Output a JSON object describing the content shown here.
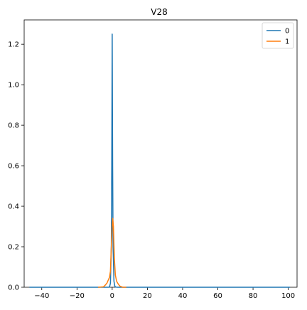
{
  "chart_data": {
    "type": "line",
    "title": "V28",
    "xlabel": "",
    "ylabel": "",
    "xlim": [
      -50,
      105
    ],
    "ylim": [
      0,
      1.32
    ],
    "xticks": [
      -40,
      -20,
      0,
      20,
      40,
      60,
      80,
      100
    ],
    "xtick_labels": [
      "−40",
      "−20",
      "0",
      "20",
      "40",
      "60",
      "80",
      "100"
    ],
    "yticks": [
      0.0,
      0.2,
      0.4,
      0.6,
      0.8,
      1.0,
      1.2
    ],
    "ytick_labels": [
      "0.0",
      "0.2",
      "0.4",
      "0.6",
      "0.8",
      "1.0",
      "1.2"
    ],
    "grid": false,
    "legend": "top-right",
    "series": [
      {
        "name": "0",
        "color": "#1f77b4",
        "points": [
          [
            -47,
            0
          ],
          [
            -2,
            0
          ],
          [
            -1.5,
            0.002
          ],
          [
            -1.0,
            0.02
          ],
          [
            -0.5,
            0.2
          ],
          [
            -0.25,
            0.6
          ],
          [
            0.0,
            1.25
          ],
          [
            0.25,
            0.6
          ],
          [
            0.5,
            0.2
          ],
          [
            1.0,
            0.03
          ],
          [
            1.5,
            0.005
          ],
          [
            2.0,
            0.001
          ],
          [
            3,
            0
          ],
          [
            101,
            0
          ]
        ]
      },
      {
        "name": "1",
        "color": "#ff7f0e",
        "points": [
          [
            -8,
            0
          ],
          [
            -5,
            0.002
          ],
          [
            -4,
            0.01
          ],
          [
            -3,
            0.02
          ],
          [
            -2,
            0.04
          ],
          [
            -1.5,
            0.05
          ],
          [
            -1,
            0.08
          ],
          [
            -0.5,
            0.2
          ],
          [
            0,
            0.3
          ],
          [
            0.3,
            0.34
          ],
          [
            0.7,
            0.3
          ],
          [
            1.2,
            0.15
          ],
          [
            1.8,
            0.06
          ],
          [
            2.5,
            0.03
          ],
          [
            3.5,
            0.015
          ],
          [
            4.5,
            0.005
          ],
          [
            6,
            0
          ],
          [
            8,
            0
          ]
        ]
      }
    ]
  }
}
